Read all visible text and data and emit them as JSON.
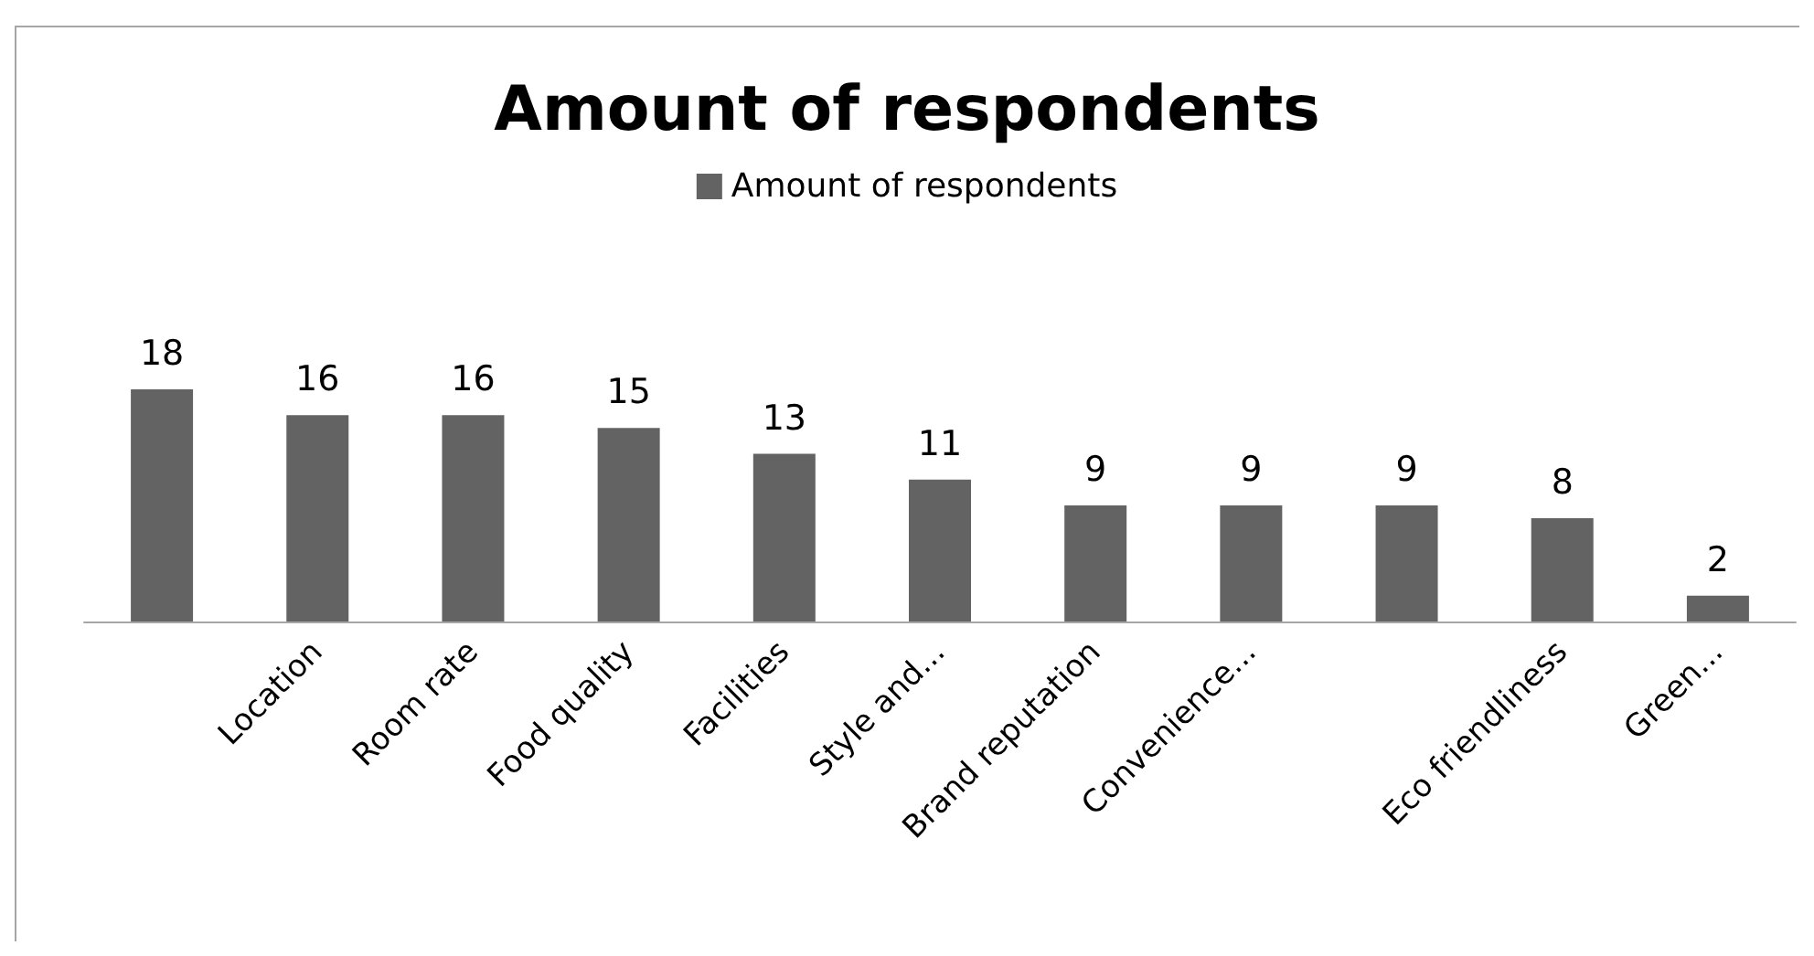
{
  "chart_data": {
    "type": "bar",
    "title": "Amount of respondents",
    "categories": [
      null,
      "Location",
      "Room rate",
      "Food quality",
      "Facilities",
      "Style and...",
      "Brand reputation",
      "Convenience...",
      null,
      "Eco friendliness",
      "Green..."
    ],
    "series": [
      {
        "name": "Amount of respondents",
        "color": "#636363",
        "values": [
          18,
          16,
          16,
          15,
          13,
          11,
          9,
          9,
          9,
          8,
          2
        ]
      }
    ],
    "data_labels": true,
    "legend": "top",
    "grid": false
  }
}
